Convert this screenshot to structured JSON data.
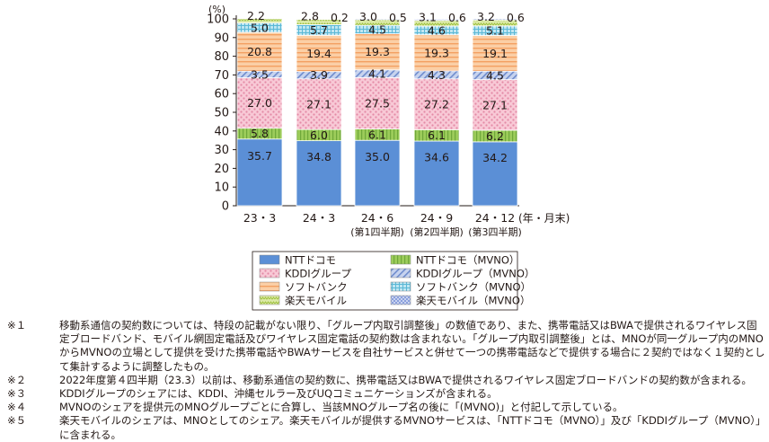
{
  "chart_data": {
    "type": "bar",
    "stacked": true,
    "unit_label": "(%)",
    "x_unit_label": "(年・月末)",
    "ylim": [
      0,
      100
    ],
    "yticks": [
      0,
      10,
      20,
      30,
      40,
      50,
      60,
      70,
      80,
      90,
      100
    ],
    "categories": [
      "23・3",
      "24・3",
      "24・6",
      "24・9",
      "24・12"
    ],
    "category_sublabels": [
      "",
      "",
      "(第1四半期)",
      "(第2四半期)",
      "(第3四半期)"
    ],
    "series": [
      {
        "name": "NTTドコモ",
        "values": [
          35.7,
          34.8,
          35.0,
          34.6,
          34.2
        ],
        "color": "#5b8fd6",
        "pattern": "solid"
      },
      {
        "name": "NTTドコモ（MVNO）",
        "values": [
          5.8,
          6.0,
          6.1,
          6.1,
          6.2
        ],
        "color": "#9ccc5a",
        "pattern": "vstripe"
      },
      {
        "name": "KDDIグループ",
        "values": [
          27.0,
          27.1,
          27.5,
          27.2,
          27.1
        ],
        "color": "#f4b6c8",
        "pattern": "dots"
      },
      {
        "name": "KDDIグループ（MVNO）",
        "values": [
          3.5,
          3.9,
          4.1,
          4.3,
          4.5
        ],
        "color": "#8fa8dc",
        "pattern": "diag"
      },
      {
        "name": "ソフトバンク",
        "values": [
          20.8,
          19.4,
          19.3,
          19.3,
          19.1
        ],
        "color": "#f9b47c",
        "pattern": "hstripe"
      },
      {
        "name": "ソフトバンク（MVNO）",
        "values": [
          5.0,
          5.7,
          4.5,
          4.6,
          5.1
        ],
        "color": "#6cc3dd",
        "pattern": "grid"
      },
      {
        "name": "楽天モバイル",
        "values": [
          2.2,
          2.8,
          3.0,
          3.1,
          3.2
        ],
        "color": "#c5dc6a",
        "pattern": "wave"
      },
      {
        "name": "楽天モバイル（MVNO）",
        "values": [
          null,
          0.2,
          0.5,
          0.6,
          0.6
        ],
        "color": "#a6b6e4",
        "pattern": "check"
      }
    ],
    "data_labels": [
      [
        "35.7",
        "5.8",
        "27.0",
        "3.5",
        "20.8",
        "5.0",
        "2.2",
        ""
      ],
      [
        "34.8",
        "6.0",
        "27.1",
        "3.9",
        "19.4",
        "5.7",
        "2.8",
        "0.2"
      ],
      [
        "35.0",
        "6.1",
        "27.5",
        "4.1",
        "19.3",
        "4.5",
        "3.0",
        "0.5"
      ],
      [
        "34.6",
        "6.1",
        "27.2",
        "4.3",
        "19.3",
        "4.6",
        "3.1",
        "0.6"
      ],
      [
        "34.2",
        "6.2",
        "27.1",
        "4.5",
        "19.1",
        "5.1",
        "3.2",
        "0.6"
      ]
    ],
    "legend_placement": "bottom-center",
    "grid": false
  },
  "notes": [
    {
      "mark": "※１",
      "text": "移動系通信の契約数については、特段の記載がない限り、「グループ内取引調整後」の数値であり、また、携帯電話又はBWAで提供されるワイヤレス固定ブロードバンド、モバイル網固定電話及びワイヤレス固定電話の契約数は含まれない。「グループ内取引調整後」とは、MNOが同一グループ内のMNOからMVNOの立場として提供を受けた携帯電話やBWAサービスを自社サービスと併せて一つの携帯電話などで提供する場合に２契約ではなく１契約として集計するように調整したもの。"
    },
    {
      "mark": "※２",
      "text": "2022年度第４四半期（23.3）以前は、移動系通信の契約数に、携帯電話又はBWAで提供されるワイヤレス固定ブロードバンドの契約数が含まれる。"
    },
    {
      "mark": "※３",
      "text": "KDDIグループのシェアには、KDDI、沖縄セルラー及びUQコミュニケーションズが含まれる。"
    },
    {
      "mark": "※４",
      "text": "MVNOのシェアを提供元のMNOグループごとに合算し、当該MNOグループ名の後に「(MVNO)」と付記して示している。"
    },
    {
      "mark": "※５",
      "text": "楽天モバイルのシェアは、MNOとしてのシェア。楽天モバイルが提供するMVNOサービスは、「NTTドコモ（MVNO）」及び「KDDIグループ（MVNO）」に含まれる。"
    }
  ]
}
